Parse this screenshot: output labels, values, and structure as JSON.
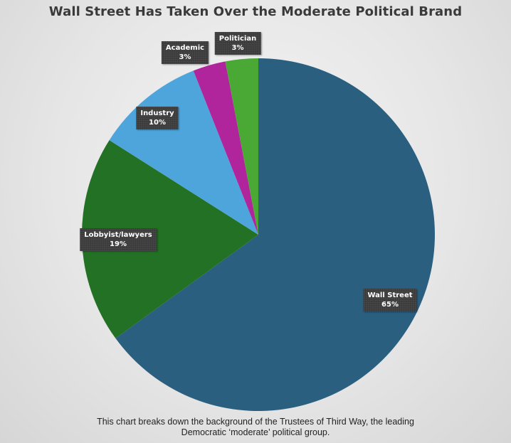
{
  "title": "Wall Street Has Taken Over the Moderate Political Brand",
  "footnote": {
    "line1": "This chart breaks down the background of the Trustees of Third Way, the leading",
    "line2": "Democratic ‘moderate’ political group."
  },
  "chart_data": {
    "type": "pie",
    "title": "Wall Street Has Taken Over the Moderate Political Brand",
    "slices": [
      {
        "label": "Wall Street",
        "value": 65,
        "display": "65%",
        "color": "#2a5f80"
      },
      {
        "label": "Lobbyist/lawyers",
        "value": 19,
        "display": "19%",
        "color": "#237124"
      },
      {
        "label": "Industry",
        "value": 10,
        "display": "10%",
        "color": "#4ea5dc"
      },
      {
        "label": "Academic",
        "value": 3,
        "display": "3%",
        "color": "#b0259b"
      },
      {
        "label": "Politician",
        "value": 3,
        "display": "3%",
        "color": "#4aa834"
      }
    ],
    "start_angle_deg": 0,
    "direction": "clockwise",
    "legend": "none"
  }
}
